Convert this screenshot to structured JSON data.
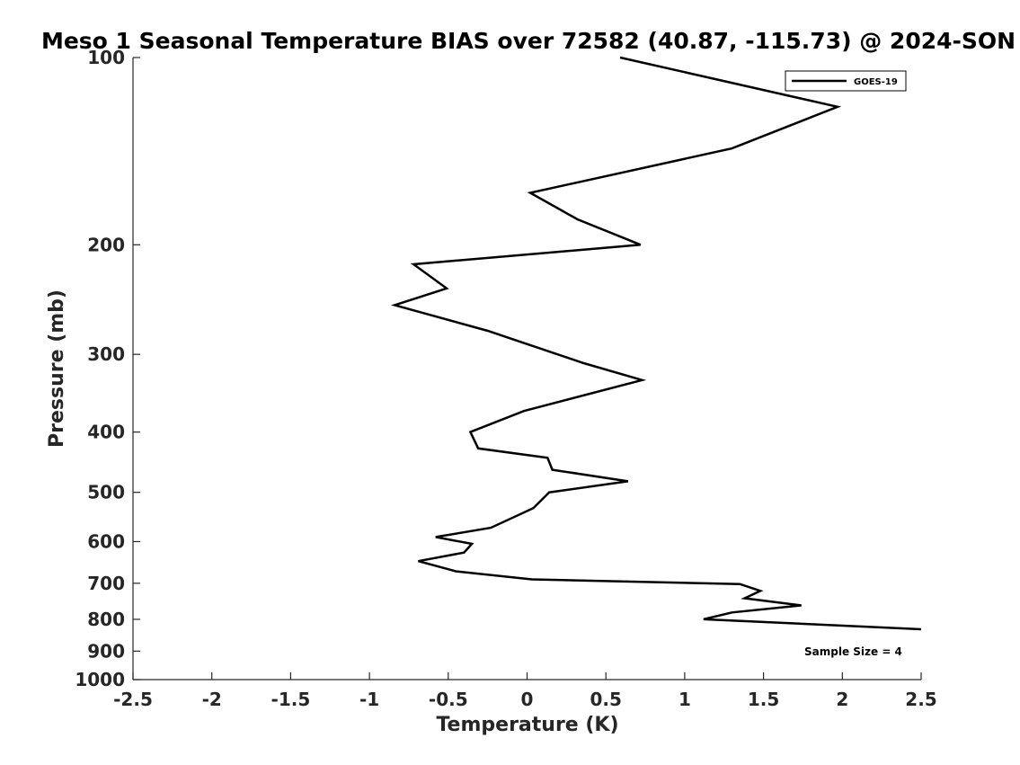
{
  "chart_data": {
    "type": "line",
    "title": "Meso 1 Seasonal Temperature BIAS over 72582 (40.87, -115.73) @ 2024-SON",
    "xlabel": "Temperature (K)",
    "ylabel": "Pressure (mb)",
    "xlim": [
      -2.5,
      2.5
    ],
    "ylim": [
      100,
      1000
    ],
    "y_scale": "log",
    "y_reversed": true,
    "x_ticks": [
      "-2.5",
      "-2",
      "-1.5",
      "-1",
      "-0.5",
      "0",
      "0.5",
      "1",
      "1.5",
      "2",
      "2.5"
    ],
    "y_ticks": [
      "100",
      "200",
      "300",
      "400",
      "500",
      "600",
      "700",
      "800",
      "900",
      "1000"
    ],
    "grid": false,
    "legend_position": "top-right",
    "annotation": "Sample Size = 4",
    "series": [
      {
        "name": "GOES-19",
        "color": "#000000",
        "points": [
          {
            "x": 0.59,
            "p": 100
          },
          {
            "x": 1.97,
            "p": 120
          },
          {
            "x": 1.3,
            "p": 140
          },
          {
            "x": 0.02,
            "p": 165
          },
          {
            "x": 0.32,
            "p": 182
          },
          {
            "x": 0.72,
            "p": 200
          },
          {
            "x": -0.72,
            "p": 215
          },
          {
            "x": -0.51,
            "p": 235
          },
          {
            "x": -0.84,
            "p": 250
          },
          {
            "x": -0.25,
            "p": 275
          },
          {
            "x": 0.36,
            "p": 310
          },
          {
            "x": 0.73,
            "p": 330
          },
          {
            "x": -0.02,
            "p": 370
          },
          {
            "x": -0.36,
            "p": 400
          },
          {
            "x": -0.31,
            "p": 425
          },
          {
            "x": 0.13,
            "p": 440
          },
          {
            "x": 0.16,
            "p": 460
          },
          {
            "x": 0.64,
            "p": 480
          },
          {
            "x": 0.14,
            "p": 500
          },
          {
            "x": 0.04,
            "p": 530
          },
          {
            "x": -0.23,
            "p": 570
          },
          {
            "x": -0.58,
            "p": 590
          },
          {
            "x": -0.35,
            "p": 605
          },
          {
            "x": -0.4,
            "p": 625
          },
          {
            "x": -0.69,
            "p": 645
          },
          {
            "x": -0.45,
            "p": 670
          },
          {
            "x": 0.03,
            "p": 690
          },
          {
            "x": 1.35,
            "p": 702
          },
          {
            "x": 1.48,
            "p": 720
          },
          {
            "x": 1.38,
            "p": 740
          },
          {
            "x": 1.74,
            "p": 760
          },
          {
            "x": 1.3,
            "p": 780
          },
          {
            "x": 1.12,
            "p": 800
          },
          {
            "x": 2.5,
            "p": 830
          }
        ]
      }
    ]
  }
}
